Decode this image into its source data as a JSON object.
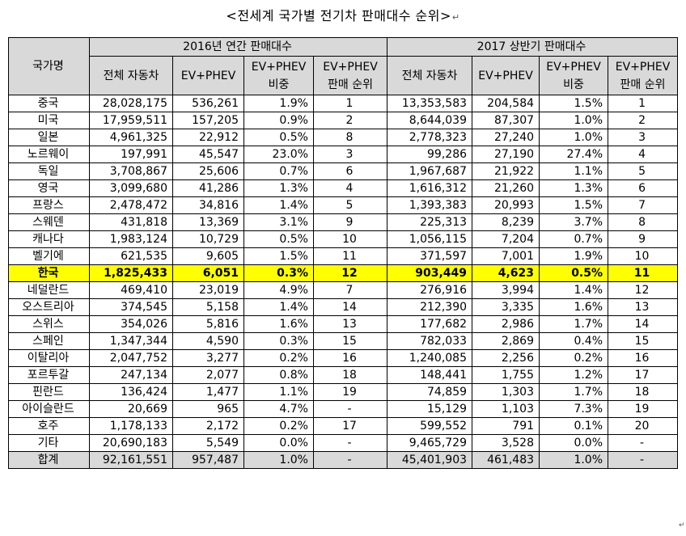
{
  "title": "<전세계 국가별 전기차 판매대수 순위>",
  "title_mark": "↵",
  "header": {
    "country": "국가명",
    "group2016": "2016년 연간 판매대수",
    "group2017": "2017 상반기 판매대수",
    "col_total": "전체 자동차",
    "col_ev": "EV+PHEV",
    "col_share_1": "EV+PHEV",
    "col_share_2": "비중",
    "col_rank_1": "EV+PHEV",
    "col_rank_2": "판매 순위"
  },
  "rows": [
    {
      "name": "중국",
      "t16": "28,028,175",
      "e16": "536,261",
      "s16": "1.9%",
      "r16": "1",
      "t17": "13,353,583",
      "e17": "204,584",
      "s17": "1.5%",
      "r17": "1"
    },
    {
      "name": "미국",
      "t16": "17,959,511",
      "e16": "157,205",
      "s16": "0.9%",
      "r16": "2",
      "t17": "8,644,039",
      "e17": "87,307",
      "s17": "1.0%",
      "r17": "2"
    },
    {
      "name": "일본",
      "t16": "4,961,325",
      "e16": "22,912",
      "s16": "0.5%",
      "r16": "8",
      "t17": "2,778,323",
      "e17": "27,240",
      "s17": "1.0%",
      "r17": "3"
    },
    {
      "name": "노르웨이",
      "t16": "197,991",
      "e16": "45,547",
      "s16": "23.0%",
      "r16": "3",
      "t17": "99,286",
      "e17": "27,190",
      "s17": "27.4%",
      "r17": "4"
    },
    {
      "name": "독일",
      "t16": "3,708,867",
      "e16": "25,606",
      "s16": "0.7%",
      "r16": "6",
      "t17": "1,967,687",
      "e17": "21,922",
      "s17": "1.1%",
      "r17": "5"
    },
    {
      "name": "영국",
      "t16": "3,099,680",
      "e16": "41,286",
      "s16": "1.3%",
      "r16": "4",
      "t17": "1,616,312",
      "e17": "21,260",
      "s17": "1.3%",
      "r17": "6"
    },
    {
      "name": "프랑스",
      "t16": "2,478,472",
      "e16": "34,816",
      "s16": "1.4%",
      "r16": "5",
      "t17": "1,393,383",
      "e17": "20,993",
      "s17": "1.5%",
      "r17": "7"
    },
    {
      "name": "스웨덴",
      "t16": "431,818",
      "e16": "13,369",
      "s16": "3.1%",
      "r16": "9",
      "t17": "225,313",
      "e17": "8,239",
      "s17": "3.7%",
      "r17": "8"
    },
    {
      "name": "캐나다",
      "t16": "1,983,124",
      "e16": "10,729",
      "s16": "0.5%",
      "r16": "10",
      "t17": "1,056,115",
      "e17": "7,204",
      "s17": "0.7%",
      "r17": "9"
    },
    {
      "name": "벨기에",
      "t16": "621,535",
      "e16": "9,605",
      "s16": "1.5%",
      "r16": "11",
      "t17": "371,597",
      "e17": "7,001",
      "s17": "1.9%",
      "r17": "10"
    },
    {
      "name": "한국",
      "t16": "1,825,433",
      "e16": "6,051",
      "s16": "0.3%",
      "r16": "12",
      "t17": "903,449",
      "e17": "4,623",
      "s17": "0.5%",
      "r17": "11",
      "highlight": true
    },
    {
      "name": "네덜란드",
      "t16": "469,410",
      "e16": "23,019",
      "s16": "4.9%",
      "r16": "7",
      "t17": "276,916",
      "e17": "3,994",
      "s17": "1.4%",
      "r17": "12"
    },
    {
      "name": "오스트리아",
      "t16": "374,545",
      "e16": "5,158",
      "s16": "1.4%",
      "r16": "14",
      "t17": "212,390",
      "e17": "3,335",
      "s17": "1.6%",
      "r17": "13"
    },
    {
      "name": "스위스",
      "t16": "354,026",
      "e16": "5,816",
      "s16": "1.6%",
      "r16": "13",
      "t17": "177,682",
      "e17": "2,986",
      "s17": "1.7%",
      "r17": "14"
    },
    {
      "name": "스페인",
      "t16": "1,347,344",
      "e16": "4,590",
      "s16": "0.3%",
      "r16": "15",
      "t17": "782,033",
      "e17": "2,869",
      "s17": "0.4%",
      "r17": "15"
    },
    {
      "name": "이탈리아",
      "t16": "2,047,752",
      "e16": "3,277",
      "s16": "0.2%",
      "r16": "16",
      "t17": "1,240,085",
      "e17": "2,256",
      "s17": "0.2%",
      "r17": "16"
    },
    {
      "name": "포르투갈",
      "t16": "247,134",
      "e16": "2,077",
      "s16": "0.8%",
      "r16": "18",
      "t17": "148,441",
      "e17": "1,755",
      "s17": "1.2%",
      "r17": "17"
    },
    {
      "name": "핀란드",
      "t16": "136,424",
      "e16": "1,477",
      "s16": "1.1%",
      "r16": "19",
      "t17": "74,859",
      "e17": "1,303",
      "s17": "1.7%",
      "r17": "18"
    },
    {
      "name": "아이슬란드",
      "t16": "20,669",
      "e16": "965",
      "s16": "4.7%",
      "r16": "-",
      "t17": "15,129",
      "e17": "1,103",
      "s17": "7.3%",
      "r17": "19"
    },
    {
      "name": "호주",
      "t16": "1,178,133",
      "e16": "2,172",
      "s16": "0.2%",
      "r16": "17",
      "t17": "599,552",
      "e17": "791",
      "s17": "0.1%",
      "r17": "20"
    },
    {
      "name": "기타",
      "t16": "20,690,183",
      "e16": "5,549",
      "s16": "0.0%",
      "r16": "-",
      "t17": "9,465,729",
      "e17": "3,528",
      "s17": "0.0%",
      "r17": "-"
    },
    {
      "name": "합계",
      "t16": "92,161,551",
      "e16": "957,487",
      "s16": "1.0%",
      "r16": "-",
      "t17": "45,401,903",
      "e17": "461,483",
      "s17": "1.0%",
      "r17": "-",
      "total": true
    }
  ],
  "end_mark": "↵",
  "colors": {
    "header_bg": "#d9d9d9",
    "highlight_bg": "#ffff00",
    "total_bg": "#d9d9d9"
  }
}
